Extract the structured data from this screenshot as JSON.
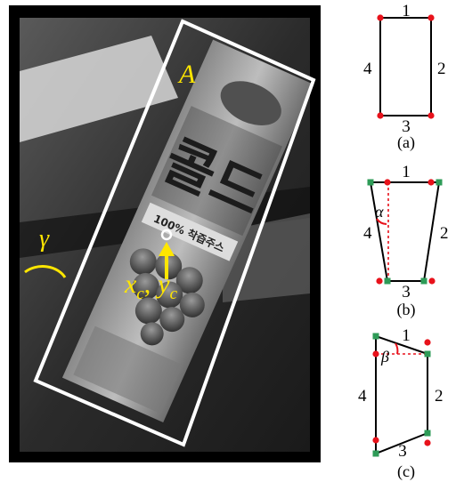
{
  "photo": {
    "box_label": "A",
    "center_x_label": "x",
    "center_x_sub": "c",
    "center_sep": ",",
    "center_y_label": "y",
    "center_y_sub": "c",
    "angle_label": "γ",
    "product_text_big": "콜드",
    "product_text_small": "100% 착즙주스"
  },
  "panel_a": {
    "caption": "(a)",
    "edges": [
      "1",
      "2",
      "3",
      "4"
    ]
  },
  "panel_b": {
    "caption": "(b)",
    "edges": [
      "1",
      "2",
      "3",
      "4"
    ],
    "angle_label": "α"
  },
  "panel_c": {
    "caption": "(c)",
    "edges": [
      "1",
      "2",
      "3",
      "4"
    ],
    "angle_label": "β"
  },
  "colors": {
    "box_outline": "#ffffff",
    "annotation": "#ffe600",
    "corner_original": "#e8121b",
    "corner_transformed": "#2e9b57",
    "dashed_guide": "#e8121b",
    "frame": "#000000"
  }
}
